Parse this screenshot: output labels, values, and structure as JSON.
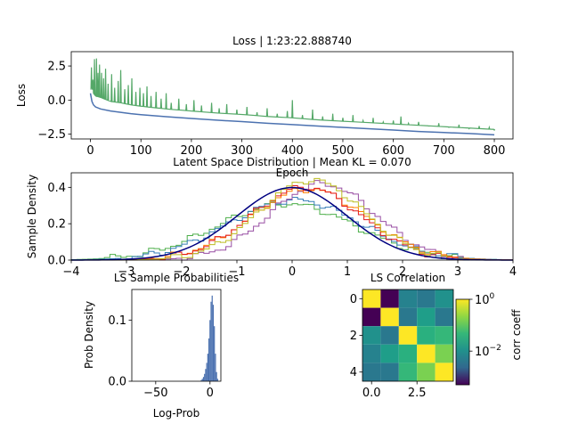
{
  "chart_data": [
    {
      "type": "line",
      "title": "Loss | 1:23:22.888740",
      "xlabel": "Epoch",
      "ylabel": "Loss",
      "xlim": [
        -38,
        837
      ],
      "ylim": [
        -2.85,
        3.55
      ],
      "xticks": [
        0,
        100,
        200,
        300,
        400,
        500,
        600,
        700,
        800
      ],
      "xtick_labels": [
        "0",
        "100",
        "200",
        "300",
        "400",
        "500",
        "600",
        "700",
        "800"
      ],
      "yticks": [
        -2.5,
        0.0,
        2.5
      ],
      "ytick_labels": [
        "−2.5",
        "0.0",
        "2.5"
      ],
      "series": [
        {
          "color": "#4c72b0",
          "x": [
            0,
            3,
            6,
            10,
            20,
            40,
            60,
            80,
            100,
            150,
            200,
            250,
            300,
            350,
            400,
            450,
            500,
            550,
            600,
            650,
            700,
            750,
            800
          ],
          "values": [
            0.5,
            -0.1,
            -0.35,
            -0.5,
            -0.65,
            -0.8,
            -0.9,
            -1.0,
            -1.07,
            -1.22,
            -1.35,
            -1.47,
            -1.58,
            -1.7,
            -1.8,
            -1.9,
            -2.0,
            -2.1,
            -2.2,
            -2.3,
            -2.38,
            -2.45,
            -2.55
          ]
        },
        {
          "color": "#55a868",
          "x": [
            0,
            3,
            6,
            10,
            20,
            40,
            60,
            80,
            100,
            150,
            200,
            250,
            300,
            350,
            400,
            450,
            500,
            550,
            600,
            650,
            700,
            750,
            800
          ],
          "values": [
            0.7,
            0.9,
            0.5,
            0.3,
            0.2,
            -0.1,
            -0.2,
            -0.35,
            -0.45,
            -0.65,
            -0.8,
            -0.95,
            -1.05,
            -1.2,
            -1.3,
            -1.45,
            -1.55,
            -1.65,
            -1.75,
            -1.85,
            -1.95,
            -2.05,
            -2.15
          ],
          "spikes": [
            [
              2,
              2.4
            ],
            [
              5,
              1.5
            ],
            [
              8,
              3.0
            ],
            [
              12,
              3.05
            ],
            [
              15,
              2.0
            ],
            [
              18,
              2.6
            ],
            [
              22,
              2.0
            ],
            [
              26,
              1.6
            ],
            [
              30,
              2.3
            ],
            [
              35,
              1.2
            ],
            [
              42,
              1.9
            ],
            [
              48,
              0.9
            ],
            [
              55,
              1.4
            ],
            [
              60,
              2.2
            ],
            [
              68,
              0.8
            ],
            [
              75,
              1.1
            ],
            [
              82,
              1.6
            ],
            [
              90,
              0.6
            ],
            [
              98,
              0.9
            ],
            [
              105,
              0.5
            ],
            [
              112,
              1.0
            ],
            [
              120,
              0.3
            ],
            [
              130,
              0.6
            ],
            [
              140,
              0.1
            ],
            [
              150,
              0.5
            ],
            [
              160,
              -0.2
            ],
            [
              175,
              0.1
            ],
            [
              190,
              -0.3
            ],
            [
              205,
              0.0
            ],
            [
              220,
              -0.4
            ],
            [
              240,
              -0.2
            ],
            [
              255,
              -0.6
            ],
            [
              270,
              -0.3
            ],
            [
              290,
              -0.7
            ],
            [
              310,
              -0.5
            ],
            [
              330,
              -0.9
            ],
            [
              350,
              -0.6
            ],
            [
              370,
              -1.0
            ],
            [
              390,
              -0.8
            ],
            [
              400,
              0.0
            ],
            [
              420,
              -1.1
            ],
            [
              440,
              -0.7
            ],
            [
              460,
              -1.2
            ],
            [
              480,
              -1.0
            ],
            [
              500,
              -1.3
            ],
            [
              520,
              -1.1
            ],
            [
              540,
              -1.5
            ],
            [
              560,
              -1.3
            ],
            [
              580,
              -1.6
            ],
            [
              600,
              -1.5
            ],
            [
              615,
              -1.2
            ],
            [
              630,
              -1.7
            ],
            [
              650,
              -1.6
            ],
            [
              670,
              -1.9
            ],
            [
              690,
              -1.7
            ],
            [
              710,
              -2.0
            ],
            [
              730,
              -1.8
            ],
            [
              750,
              -2.1
            ],
            [
              770,
              -1.9
            ],
            [
              790,
              -2.0
            ],
            [
              800,
              -2.2
            ]
          ]
        }
      ]
    },
    {
      "type": "line",
      "title": "Latent Space Distribution | Mean KL = 0.070",
      "xlabel": "",
      "ylabel": "Sample Density",
      "xlim": [
        -4,
        4
      ],
      "ylim": [
        0,
        0.48
      ],
      "xticks": [
        -4,
        -3,
        -2,
        -1,
        0,
        1,
        2,
        3,
        4
      ],
      "xtick_labels": [
        "−4",
        "−3",
        "−2",
        "−1",
        "0",
        "1",
        "2",
        "3",
        "4"
      ],
      "yticks": [
        0.0,
        0.2,
        0.4
      ],
      "ytick_labels": [
        "0.0",
        "0.2",
        "0.4"
      ],
      "reference": {
        "type": "normal-pdf",
        "mean": 0,
        "std": 1,
        "color": "#000080"
      },
      "series": [
        {
          "color": "#4daf4a",
          "shape": "normal",
          "mean": -0.1,
          "std": 1.25,
          "peak": 0.31
        },
        {
          "color": "#377eb8",
          "shape": "normal",
          "mean": 0.05,
          "std": 1.2,
          "peak": 0.33
        },
        {
          "color": "#984ea3",
          "shape": "normal",
          "mean": 0.55,
          "std": 0.95,
          "peak": 0.42
        },
        {
          "color": "#ff7f00",
          "shape": "normal",
          "mean": 0.3,
          "std": 1.05,
          "peak": 0.39
        },
        {
          "color": "#e41a1c",
          "shape": "normal",
          "mean": 0.25,
          "std": 1.0,
          "peak": 0.4
        },
        {
          "color": "#bcbd22",
          "shape": "normal",
          "mean": 0.35,
          "std": 0.95,
          "peak": 0.44
        }
      ]
    },
    {
      "type": "bar",
      "title": "LS Sample Probabilities",
      "xlabel": "Log-Prob",
      "ylabel": "Prob Density",
      "xlim": [
        -72,
        10
      ],
      "ylim": [
        0,
        0.15
      ],
      "xticks": [
        -50,
        0
      ],
      "xtick_labels": [
        "−50",
        "0"
      ],
      "yticks": [
        0.0,
        0.1
      ],
      "ytick_labels": [
        "0.0",
        "0.1"
      ],
      "color": "#4c72b0",
      "bins": [
        -8,
        -7,
        -6,
        -5,
        -4,
        -3,
        -2,
        -1,
        0,
        1,
        2,
        3,
        4,
        5,
        6,
        7,
        8
      ],
      "values": [
        0.002,
        0.004,
        0.007,
        0.012,
        0.02,
        0.03,
        0.045,
        0.07,
        0.1,
        0.13,
        0.14,
        0.125,
        0.09,
        0.045,
        0.015,
        0.004,
        0.0
      ]
    },
    {
      "type": "heatmap",
      "title": "LS Correlation",
      "xlim": [
        -0.5,
        4.5
      ],
      "ylim": [
        4.5,
        -0.5
      ],
      "xticks": [
        0,
        2.5
      ],
      "xtick_labels": [
        "0.0",
        "2.5"
      ],
      "yticks": [
        0,
        2,
        4
      ],
      "ytick_labels": [
        "0",
        "2",
        "4"
      ],
      "colorbar": {
        "label": "corr coeff",
        "scale": "log",
        "ticks": [
          1,
          0.01
        ],
        "tick_labels": [
          "10^0",
          "10^−2"
        ],
        "colors": [
          "#440154",
          "#31688e",
          "#21918c",
          "#35b779",
          "#90d743",
          "#fde725"
        ]
      },
      "matrix_colors": [
        [
          "#fde725",
          "#440154",
          "#26828e",
          "#2a788e",
          "#21918c"
        ],
        [
          "#440154",
          "#fde725",
          "#2a788e",
          "#1f9e89",
          "#2a788e"
        ],
        [
          "#21918c",
          "#2a788e",
          "#fde725",
          "#2ab07f",
          "#35b779"
        ],
        [
          "#26828e",
          "#1f9e89",
          "#2ab07f",
          "#fde725",
          "#7ad151"
        ],
        [
          "#2a788e",
          "#2a788e",
          "#35b779",
          "#7ad151",
          "#fde725"
        ]
      ]
    }
  ]
}
